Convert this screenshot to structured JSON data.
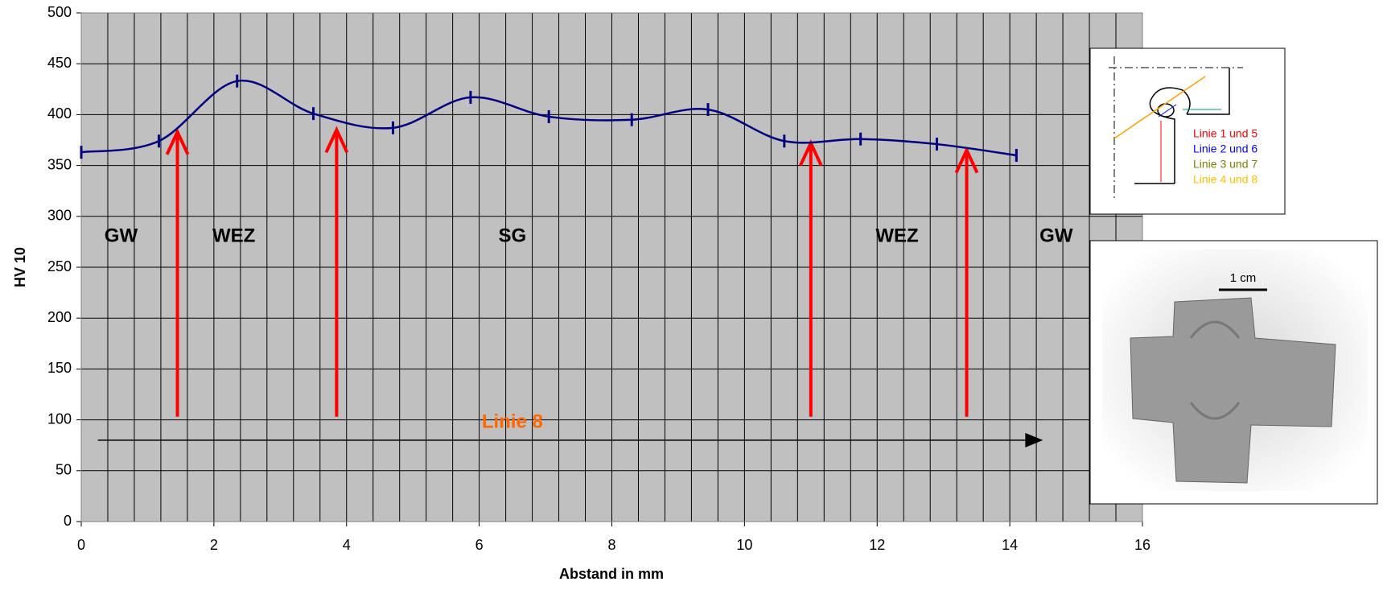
{
  "chart_data": {
    "type": "line",
    "x_label": "Abstand in mm",
    "y_label": "HV 10",
    "series": [
      {
        "name": "Linie 8",
        "color": "#000080",
        "x": [
          0,
          1.17,
          2.35,
          3.5,
          4.7,
          5.87,
          7.05,
          8.3,
          9.45,
          10.6,
          11.75,
          12.9,
          14.1
        ],
        "values": [
          363,
          374,
          433,
          401,
          387,
          417,
          398,
          395,
          405,
          374,
          376,
          371,
          360
        ]
      }
    ],
    "xlim": [
      0,
      16
    ],
    "xticks": [
      0,
      2,
      4,
      6,
      8,
      10,
      12,
      14,
      16
    ],
    "ylim": [
      0,
      500
    ],
    "yticks": [
      0,
      50,
      100,
      150,
      200,
      250,
      300,
      350,
      400,
      450,
      500
    ],
    "grid": true,
    "x_minor_divisions": 5,
    "plot_background": "#c0c0c0",
    "zone_labels": [
      {
        "text": "GW",
        "x": 0.6,
        "y": 280
      },
      {
        "text": "WEZ",
        "x": 2.3,
        "y": 280
      },
      {
        "text": "SG",
        "x": 6.5,
        "y": 280
      },
      {
        "text": "WEZ",
        "x": 12.3,
        "y": 280
      },
      {
        "text": "GW",
        "x": 14.7,
        "y": 280
      }
    ],
    "boundary_arrows": [
      {
        "x": 1.45,
        "y": [
          103,
          383
        ]
      },
      {
        "x": 3.85,
        "y": [
          103,
          385
        ]
      },
      {
        "x": 11.0,
        "y": [
          103,
          372
        ]
      },
      {
        "x": 13.35,
        "y": [
          103,
          365
        ]
      }
    ],
    "arrow_color": "#ff0000",
    "line_arrow": {
      "label": "Linie 8",
      "label_color": "#ff6600",
      "label_x": 6.5,
      "label_y": 97,
      "x": [
        0.25,
        14.5
      ],
      "y": 80
    }
  },
  "inset_legend": [
    {
      "text": "Linie 1 und 5",
      "color": "#ff0000"
    },
    {
      "text": "Linie 2 und 6",
      "color": "#0000ff"
    },
    {
      "text": "Linie 3 und 7",
      "color": "#808000"
    },
    {
      "text": "Linie 4 und 8",
      "color": "#ffc000"
    }
  ],
  "photo_scale": "1 cm"
}
